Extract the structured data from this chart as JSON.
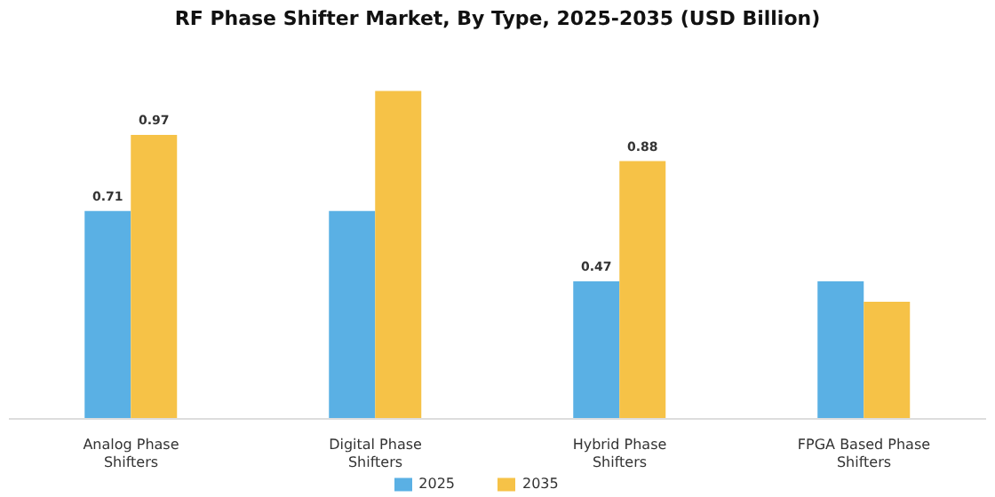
{
  "chart_data": {
    "type": "bar",
    "title": "RF Phase Shifter Market, By Type, 2025-2035 (USD Billion)",
    "categories": [
      "Analog Phase Shifters",
      "Digital Phase Shifters",
      "Hybrid Phase Shifters",
      "FPGA Based Phase Shifters"
    ],
    "series": [
      {
        "name": "2025",
        "color": "#5ab0e4",
        "values": [
          0.71,
          0.71,
          0.47,
          0.47
        ],
        "value_labels": [
          "0.71",
          null,
          "0.47",
          null
        ]
      },
      {
        "name": "2035",
        "color": "#f6c247",
        "values": [
          0.97,
          1.12,
          0.88,
          0.4
        ],
        "value_labels": [
          "0.97",
          null,
          "0.88",
          null
        ]
      }
    ],
    "legend": "bottom",
    "grid": false
  }
}
